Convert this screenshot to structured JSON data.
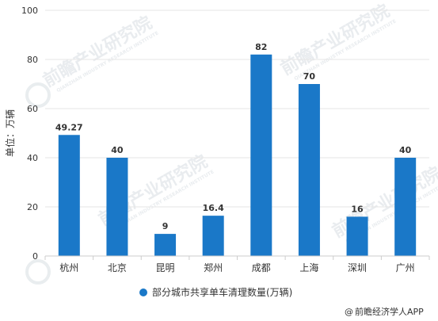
{
  "chart_data": {
    "type": "bar",
    "categories": [
      "杭州",
      "北京",
      "昆明",
      "郑州",
      "成都",
      "上海",
      "深圳",
      "广州"
    ],
    "series": [
      {
        "name": "部分城市共享单车清理数量(万辆)",
        "values": [
          49.27,
          40,
          9,
          16.4,
          82,
          70,
          16,
          40
        ]
      }
    ],
    "data_labels": [
      "49.27",
      "40",
      "9",
      "16.4",
      "82",
      "70",
      "16",
      "40"
    ],
    "ylabel": "单位：万辆",
    "ylim": [
      0,
      100
    ],
    "yticks": [
      0,
      20,
      40,
      60,
      80,
      100
    ],
    "grid": true,
    "legend_position": "bottom",
    "bar_color": "#1a78c8",
    "grid_color": "#e6e6e6"
  },
  "watermark": {
    "text": "前瞻产业研究院",
    "subtext": "QIANZHAN INDUSTRY RESEARCH INSTITUTE"
  },
  "credit": {
    "symbol": "@",
    "text": "前瞻经济学人APP"
  }
}
